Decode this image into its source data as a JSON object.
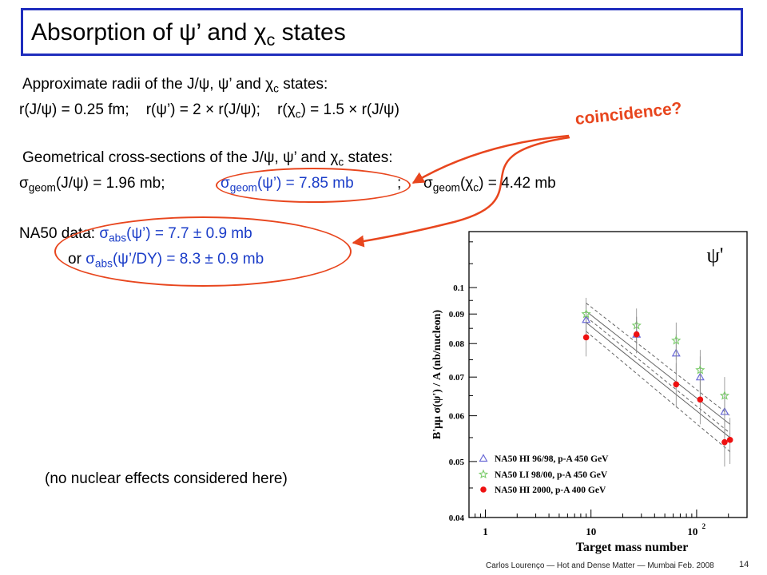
{
  "title": {
    "prefix": "Absorption of ",
    "psi": "ψ",
    "mid": "’ and ",
    "chi": "χ",
    "chi_sub": "c",
    "suffix": " states"
  },
  "radii": {
    "heading_a": "Approximate radii of the J/",
    "heading_psi1": "ψ",
    "heading_b": ", ",
    "heading_psi2": "ψ",
    "heading_c": "’ and ",
    "heading_chi": "χ",
    "heading_chi_sub": "c",
    "heading_d": " states:",
    "eq_a": "r(J/",
    "eq_psi1": "ψ",
    "eq_b": ") = 0.25 fm;    r(",
    "eq_psi2": "ψ",
    "eq_c": "’) = 2 × r(J/",
    "eq_psi3": "ψ",
    "eq_d": ");    r(",
    "eq_chi": "χ",
    "eq_chi_sub": "c",
    "eq_e": ") = 1.5 × r(J/",
    "eq_psi4": "ψ",
    "eq_f": ")"
  },
  "geom": {
    "heading_a": "Geometrical cross-sections of the J/",
    "heading_psi1": "ψ",
    "heading_b": ", ",
    "heading_psi2": "ψ",
    "heading_c": "’ and ",
    "heading_chi": "χ",
    "heading_chi_sub": "c",
    "heading_d": " states:",
    "sigma1": "σ",
    "sub1": "geom",
    "t1a": "(J/",
    "psi1": "ψ",
    "t1b": ") = 1.96 mb;",
    "sigma2": "σ",
    "sub2": "geom",
    "t2a": "(",
    "psi2": "ψ",
    "t2b": "’) = 7.85 mb",
    "semi": ";",
    "sigma3": "σ",
    "sub3": "geom",
    "t3a": "(",
    "chi": "χ",
    "chi_sub": "c",
    "t3b": ") = 4.42 mb"
  },
  "na50": {
    "label": "NA50 data: ",
    "sigma1": "σ",
    "sub1": "abs",
    "t1a": "(",
    "psi1": "ψ",
    "t1b": "’) = 7.7 ± 0.9 mb",
    "or": "or ",
    "sigma2": "σ",
    "sub2": "abs",
    "t2a": "(",
    "psi2": "ψ",
    "t2b": "’/DY) = 8.3 ± 0.9 mb"
  },
  "coincidence": "coincidence?",
  "note": "(no nuclear effects considered here)",
  "footer": "Carlos Lourenço — Hot and Dense Matter — Mumbai Feb. 2008",
  "page_number": "14",
  "colors": {
    "title_border": "#1f2dbd",
    "highlight_blue": "#1a3cc8",
    "annotation_red": "#e8461e"
  },
  "chart_data": {
    "type": "scatter",
    "panel_label": "ψ'",
    "ylabel": "B'μμ σ(ψ') / A (nb/nucleon)",
    "xlabel": "Target mass number",
    "xscale": "log",
    "yscale": "log",
    "xlim": [
      0.7,
      300
    ],
    "ylim": [
      0.04,
      0.125
    ],
    "x_ticks": [
      "1",
      "10",
      "10²"
    ],
    "y_ticks": [
      "0.04",
      "0.05",
      "0.06",
      "0.07",
      "0.08",
      "0.09",
      "0.1"
    ],
    "legend_position": "bottom-left",
    "series": [
      {
        "name": "NA50 HI 96/98, p-A 450 GeV",
        "marker": "triangle",
        "color": "#6b6bd6",
        "points": [
          {
            "x": 9,
            "y": 0.088,
            "err": 0.006
          },
          {
            "x": 27,
            "y": 0.083,
            "err": 0.006
          },
          {
            "x": 64,
            "y": 0.077,
            "err": 0.006
          },
          {
            "x": 108,
            "y": 0.07,
            "err": 0.006
          },
          {
            "x": 184,
            "y": 0.061,
            "err": 0.005
          }
        ]
      },
      {
        "name": "NA50 LI 98/00, p-A 450 GeV",
        "marker": "star",
        "color": "#7acc6a",
        "points": [
          {
            "x": 9,
            "y": 0.09,
            "err": 0.006
          },
          {
            "x": 27,
            "y": 0.086,
            "err": 0.006
          },
          {
            "x": 64,
            "y": 0.081,
            "err": 0.006
          },
          {
            "x": 108,
            "y": 0.072,
            "err": 0.006
          },
          {
            "x": 184,
            "y": 0.065,
            "err": 0.005
          }
        ]
      },
      {
        "name": "NA50 HI 2000, p-A 400 GeV",
        "marker": "circle",
        "color": "#ee1111",
        "points": [
          {
            "x": 9,
            "y": 0.082,
            "err": 0.006
          },
          {
            "x": 27,
            "y": 0.083,
            "err": 0.006
          },
          {
            "x": 64,
            "y": 0.068,
            "err": 0.006
          },
          {
            "x": 108,
            "y": 0.064,
            "err": 0.006
          },
          {
            "x": 184,
            "y": 0.054,
            "err": 0.005
          },
          {
            "x": 207,
            "y": 0.0545,
            "err": 0.005
          }
        ]
      }
    ],
    "fit_bands": [
      {
        "style": "solid",
        "x": [
          9,
          207
        ],
        "y": [
          0.091,
          0.058
        ]
      },
      {
        "style": "dashed",
        "x": [
          9,
          207
        ],
        "y": [
          0.094,
          0.06
        ]
      },
      {
        "style": "dashed",
        "x": [
          9,
          207
        ],
        "y": [
          0.089,
          0.056
        ]
      },
      {
        "style": "solid",
        "x": [
          9,
          207
        ],
        "y": [
          0.087,
          0.055
        ]
      },
      {
        "style": "dashed",
        "x": [
          9,
          207
        ],
        "y": [
          0.084,
          0.052
        ]
      }
    ]
  }
}
